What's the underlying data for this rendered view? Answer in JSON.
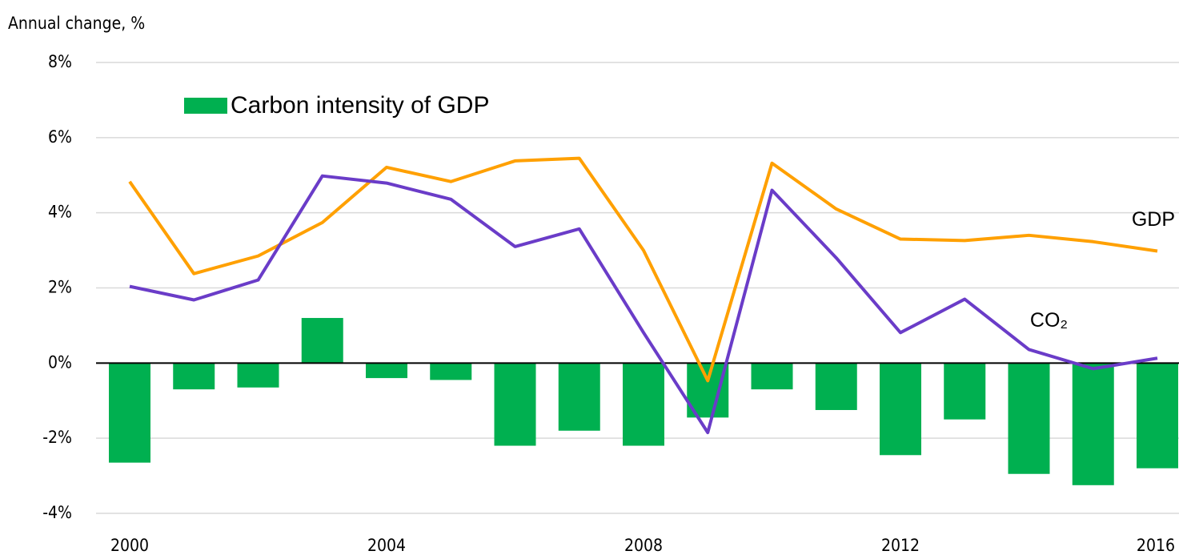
{
  "chart_data": {
    "type": "combo",
    "y_axis_label": "Annual change, %",
    "x": [
      2000,
      2001,
      2002,
      2003,
      2004,
      2005,
      2006,
      2007,
      2008,
      2009,
      2010,
      2011,
      2012,
      2013,
      2014,
      2015,
      2016
    ],
    "xlim": [
      2000,
      2016
    ],
    "xticks": [
      2000,
      2004,
      2008,
      2012,
      2016
    ],
    "ylim": [
      -4,
      8
    ],
    "yticks": [
      {
        "value": -4,
        "label": "-4%"
      },
      {
        "value": -2,
        "label": "-2%"
      },
      {
        "value": 0,
        "label": "0%"
      },
      {
        "value": 2,
        "label": "2%"
      },
      {
        "value": 4,
        "label": "4%"
      },
      {
        "value": 6,
        "label": "6%"
      },
      {
        "value": 8,
        "label": "8%"
      }
    ],
    "grid": true,
    "legend": "upper left",
    "series": [
      {
        "name": "Carbon intensity of GDP",
        "type": "bar",
        "color": "#00b050",
        "values": [
          -2.65,
          -0.7,
          -0.65,
          1.2,
          -0.4,
          -0.45,
          -2.2,
          -1.8,
          -2.2,
          -1.45,
          -0.7,
          -1.25,
          -2.45,
          -1.5,
          -2.95,
          -3.25,
          -2.8
        ]
      },
      {
        "name": "GDP",
        "type": "line",
        "color": "#ffa000",
        "values": [
          4.83,
          2.38,
          2.85,
          3.74,
          5.21,
          4.83,
          5.38,
          5.45,
          3.0,
          -0.47,
          5.32,
          4.1,
          3.3,
          3.26,
          3.4,
          3.23,
          2.98
        ]
      },
      {
        "name": "CO₂",
        "type": "line",
        "color": "#6a3cc8",
        "values": [
          2.04,
          1.68,
          2.21,
          4.98,
          4.79,
          4.36,
          3.1,
          3.57,
          0.81,
          -1.85,
          4.6,
          2.8,
          0.81,
          1.7,
          0.36,
          -0.15,
          0.13
        ]
      }
    ]
  }
}
